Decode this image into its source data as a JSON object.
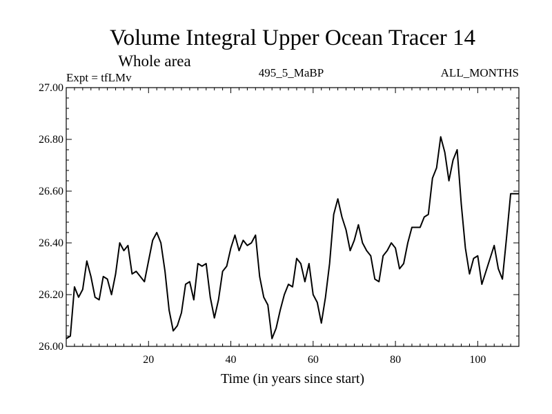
{
  "chart_data": {
    "type": "line",
    "title": "Volume Integral Upper Ocean Tracer 14",
    "subtitle": "Whole area",
    "expt_label": "Expt = tfLMv",
    "run_label": "495_5_MaBP",
    "months_label": "ALL_MONTHS",
    "xlabel": "Time (in years since start)",
    "ylabel": "",
    "xlim": [
      0,
      110
    ],
    "ylim": [
      26.0,
      27.0
    ],
    "x_ticks": [
      20,
      40,
      60,
      80,
      100
    ],
    "x_tick_labels": [
      "20",
      "40",
      "60",
      "80",
      "100"
    ],
    "y_ticks": [
      26.0,
      26.2,
      26.4,
      26.6,
      26.8,
      27.0
    ],
    "y_tick_labels": [
      "26.00",
      "26.20",
      "26.40",
      "26.60",
      "26.80",
      "27.00"
    ],
    "grid": false,
    "series": [
      {
        "name": "Tracer 14",
        "color": "#000000",
        "x": [
          0,
          1,
          2,
          3,
          4,
          5,
          6,
          7,
          8,
          9,
          10,
          11,
          12,
          13,
          14,
          15,
          16,
          17,
          18,
          19,
          20,
          21,
          22,
          23,
          24,
          25,
          26,
          27,
          28,
          29,
          30,
          31,
          32,
          33,
          34,
          35,
          36,
          37,
          38,
          39,
          40,
          41,
          42,
          43,
          44,
          45,
          46,
          47,
          48,
          49,
          50,
          51,
          52,
          53,
          54,
          55,
          56,
          57,
          58,
          59,
          60,
          61,
          62,
          63,
          64,
          65,
          66,
          67,
          68,
          69,
          70,
          71,
          72,
          73,
          74,
          75,
          76,
          77,
          78,
          79,
          80,
          81,
          82,
          83,
          84,
          85,
          86,
          87,
          88,
          89,
          90,
          91,
          92,
          93,
          94,
          95,
          96,
          97,
          98,
          99,
          100,
          101,
          102,
          103,
          104,
          105,
          106,
          107,
          108,
          109,
          110
        ],
        "values": [
          26.03,
          26.04,
          26.23,
          26.19,
          26.22,
          26.33,
          26.27,
          26.19,
          26.18,
          26.27,
          26.26,
          26.2,
          26.28,
          26.4,
          26.37,
          26.39,
          26.28,
          26.29,
          26.27,
          26.25,
          26.33,
          26.41,
          26.44,
          26.4,
          26.29,
          26.14,
          26.06,
          26.08,
          26.13,
          26.24,
          26.25,
          26.18,
          26.32,
          26.31,
          26.32,
          26.19,
          26.11,
          26.18,
          26.29,
          26.31,
          26.38,
          26.43,
          26.37,
          26.41,
          26.39,
          26.4,
          26.43,
          26.27,
          26.19,
          26.16,
          26.03,
          26.07,
          26.14,
          26.2,
          26.24,
          26.23,
          26.34,
          26.32,
          26.25,
          26.32,
          26.2,
          26.17,
          26.09,
          26.19,
          26.32,
          26.51,
          26.57,
          26.5,
          26.45,
          26.37,
          26.41,
          26.47,
          26.4,
          26.37,
          26.35,
          26.26,
          26.25,
          26.35,
          26.37,
          26.4,
          26.38,
          26.3,
          26.32,
          26.4,
          26.46,
          26.46,
          26.46,
          26.5,
          26.51,
          26.65,
          26.69,
          26.81,
          26.75,
          26.64,
          26.72,
          26.76,
          26.55,
          26.38,
          26.28,
          26.34,
          26.35,
          26.24,
          26.29,
          26.34,
          26.39,
          26.3,
          26.26,
          26.42,
          26.59,
          26.59,
          26.59
        ]
      }
    ]
  }
}
